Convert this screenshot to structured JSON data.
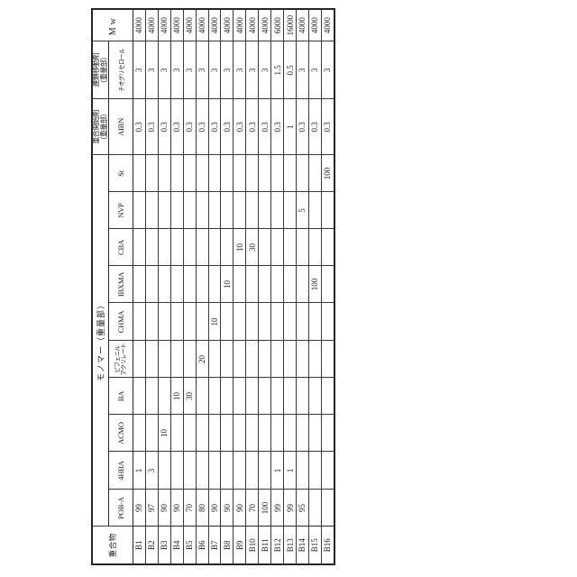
{
  "colors": {
    "background": "#ffffff",
    "ink": "#1b1b1b",
    "line": "#3a3a3a"
  },
  "table": {
    "orientation": "rotated 90 degrees counter-clockwise",
    "headers": {
      "polymer": "重合物",
      "monomer_group": "モノマー（重量部）",
      "initiator_group_line1": "重合開始剤",
      "initiator_group_line2": "（重量部）",
      "chain_transfer_group_line1": "連鎖移動剤",
      "chain_transfer_group_line2": "（重量部）",
      "mw": "Mw",
      "monomer_columns": [
        "POB-A",
        "4HBA",
        "ACMO",
        "BA",
        [
          "ビフェニル",
          "アクリレート"
        ],
        "CHMA",
        "IBXMA",
        "CBA",
        "NVP",
        "St"
      ],
      "initiator_column": "AIBN",
      "chain_transfer_column": "チオグリセロール"
    },
    "value_columns": [
      "POB-A",
      "4HBA",
      "ACMO",
      "BA",
      "ビフェニルアクリレート",
      "CHMA",
      "IBXMA",
      "CBA",
      "NVP",
      "St",
      "AIBN",
      "チオグリセロール",
      "Mw"
    ],
    "rows": [
      {
        "label": "B1",
        "values": [
          "99",
          "1",
          "",
          "",
          "",
          "",
          "",
          "",
          "",
          "",
          "0.3",
          "3",
          "4000"
        ]
      },
      {
        "label": "B2",
        "values": [
          "97",
          "3",
          "",
          "",
          "",
          "",
          "",
          "",
          "",
          "",
          "0.3",
          "3",
          "4000"
        ]
      },
      {
        "label": "B3",
        "values": [
          "90",
          "",
          "10",
          "",
          "",
          "",
          "",
          "",
          "",
          "",
          "0.3",
          "3",
          "4000"
        ]
      },
      {
        "label": "B4",
        "values": [
          "90",
          "",
          "",
          "10",
          "",
          "",
          "",
          "",
          "",
          "",
          "0.3",
          "3",
          "4000"
        ]
      },
      {
        "label": "B5",
        "values": [
          "70",
          "",
          "",
          "30",
          "",
          "",
          "",
          "",
          "",
          "",
          "0.3",
          "3",
          "4000"
        ]
      },
      {
        "label": "B6",
        "values": [
          "80",
          "",
          "",
          "",
          "20",
          "",
          "",
          "",
          "",
          "",
          "0.3",
          "3",
          "4000"
        ]
      },
      {
        "label": "B7",
        "values": [
          "90",
          "",
          "",
          "",
          "",
          "10",
          "",
          "",
          "",
          "",
          "0.3",
          "3",
          "4000"
        ]
      },
      {
        "label": "B8",
        "values": [
          "90",
          "",
          "",
          "",
          "",
          "",
          "10",
          "",
          "",
          "",
          "0.3",
          "3",
          "4000"
        ]
      },
      {
        "label": "B9",
        "values": [
          "90",
          "",
          "",
          "",
          "",
          "",
          "",
          "10",
          "",
          "",
          "0.3",
          "3",
          "4000"
        ]
      },
      {
        "label": "B10",
        "values": [
          "70",
          "",
          "",
          "",
          "",
          "",
          "",
          "30",
          "",
          "",
          "0.3",
          "3",
          "4000"
        ]
      },
      {
        "label": "B11",
        "values": [
          "100",
          "",
          "",
          "",
          "",
          "",
          "",
          "",
          "",
          "",
          "0.3",
          "3",
          "4000"
        ]
      },
      {
        "label": "B12",
        "values": [
          "99",
          "1",
          "",
          "",
          "",
          "",
          "",
          "",
          "",
          "",
          "0.3",
          "1.5",
          "6000"
        ]
      },
      {
        "label": "B13",
        "values": [
          "99",
          "1",
          "",
          "",
          "",
          "",
          "",
          "",
          "",
          "",
          "1",
          "0.5",
          "16000"
        ]
      },
      {
        "label": "B14",
        "values": [
          "95",
          "",
          "",
          "",
          "",
          "",
          "",
          "",
          "5",
          "",
          "0.3",
          "3",
          "4000"
        ]
      },
      {
        "label": "B15",
        "values": [
          "",
          "",
          "",
          "",
          "",
          "",
          "100",
          "",
          "",
          "",
          "0.3",
          "3",
          "4000"
        ]
      },
      {
        "label": "B16",
        "values": [
          "",
          "",
          "",
          "",
          "",
          "",
          "",
          "",
          "",
          "100",
          "0.3",
          "3",
          "4000"
        ]
      }
    ]
  }
}
